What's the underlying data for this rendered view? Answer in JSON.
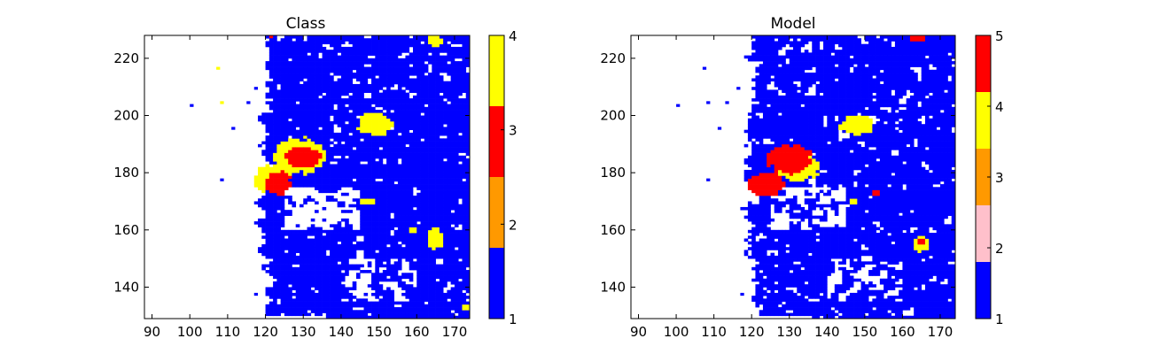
{
  "chart_data": [
    {
      "type": "heatmap",
      "title": "Class",
      "xlabel": "",
      "ylabel": "",
      "xlim": [
        88,
        174
      ],
      "ylim": [
        129,
        228
      ],
      "xticks": [
        "90",
        "100",
        "110",
        "120",
        "130",
        "140",
        "150",
        "160",
        "170"
      ],
      "yticks": [
        "140",
        "160",
        "180",
        "200",
        "220"
      ],
      "background_value": 1,
      "colorbar": {
        "min": 1,
        "max": 4,
        "ticks": [
          "1",
          "2",
          "3",
          "4"
        ],
        "bins": [
          {
            "from": 1,
            "to": 1.75,
            "color": "#0000ff"
          },
          {
            "from": 1.75,
            "to": 2.5,
            "color": "#ff9900"
          },
          {
            "from": 2.5,
            "to": 3.25,
            "color": "#ff0000"
          },
          {
            "from": 3.25,
            "to": 4,
            "color": "#ffff00"
          }
        ]
      },
      "regions": [
        {
          "value": 4,
          "x": 129,
          "y": 186,
          "rx": 7,
          "ry": 6
        },
        {
          "value": 4,
          "x": 122,
          "y": 178,
          "rx": 5,
          "ry": 5
        },
        {
          "value": 3,
          "x": 130,
          "y": 185.5,
          "rx": 5,
          "ry": 3.5
        },
        {
          "value": 3,
          "x": 123.5,
          "y": 176.5,
          "rx": 3.5,
          "ry": 4
        },
        {
          "value": 4,
          "x": 149,
          "y": 197,
          "rx": 4.5,
          "ry": 4
        },
        {
          "value": 4,
          "x": 165,
          "y": 157,
          "rx": 2,
          "ry": 4
        },
        {
          "value": 4,
          "x": 165,
          "y": 226,
          "rx": 2,
          "ry": 2
        },
        {
          "value": 4,
          "x": 147,
          "y": 170,
          "rx": 2,
          "ry": 1
        },
        {
          "value": 4,
          "x": 159,
          "y": 160,
          "rx": 1,
          "ry": 1
        },
        {
          "value": 4,
          "x": 173,
          "y": 133,
          "rx": 1,
          "ry": 1
        }
      ],
      "isolated_cells": [
        {
          "x": 100,
          "y": 203,
          "value": 1
        },
        {
          "x": 107,
          "y": 216,
          "value": 4
        },
        {
          "x": 108,
          "y": 204,
          "value": 4
        },
        {
          "x": 111,
          "y": 195,
          "value": 1
        },
        {
          "x": 108,
          "y": 177,
          "value": 1
        },
        {
          "x": 115,
          "y": 204,
          "value": 1
        },
        {
          "x": 117,
          "y": 209,
          "value": 1
        },
        {
          "x": 117,
          "y": 137,
          "value": 1
        },
        {
          "x": 121,
          "y": 227,
          "value": 3
        }
      ]
    },
    {
      "type": "heatmap",
      "title": "Model",
      "xlabel": "",
      "ylabel": "",
      "xlim": [
        88,
        174
      ],
      "ylim": [
        129,
        228
      ],
      "xticks": [
        "90",
        "100",
        "110",
        "120",
        "130",
        "140",
        "150",
        "160",
        "170"
      ],
      "yticks": [
        "140",
        "160",
        "180",
        "200",
        "220"
      ],
      "background_value": 1,
      "colorbar": {
        "min": 1,
        "max": 5,
        "ticks": [
          "1",
          "2",
          "3",
          "4",
          "5"
        ],
        "bins": [
          {
            "from": 1,
            "to": 1.8,
            "color": "#0000ff"
          },
          {
            "from": 1.8,
            "to": 2.6,
            "color": "#ffc0cb"
          },
          {
            "from": 2.6,
            "to": 3.4,
            "color": "#ff9900"
          },
          {
            "from": 3.4,
            "to": 4.2,
            "color": "#ffff00"
          },
          {
            "from": 4.2,
            "to": 5,
            "color": "#ff0000"
          }
        ]
      },
      "regions": [
        {
          "value": 4,
          "x": 132,
          "y": 182,
          "rx": 6,
          "ry": 5
        },
        {
          "value": 5,
          "x": 130,
          "y": 185,
          "rx": 6,
          "ry": 5
        },
        {
          "value": 5,
          "x": 124,
          "y": 176,
          "rx": 5,
          "ry": 4
        },
        {
          "value": 4,
          "x": 148,
          "y": 197,
          "rx": 4.5,
          "ry": 3.5
        },
        {
          "value": 4,
          "x": 165,
          "y": 155,
          "rx": 2,
          "ry": 3
        },
        {
          "value": 5,
          "x": 165,
          "y": 156,
          "rx": 1,
          "ry": 1.5
        },
        {
          "value": 5,
          "x": 164,
          "y": 227,
          "rx": 2,
          "ry": 1
        },
        {
          "value": 4,
          "x": 147,
          "y": 170,
          "rx": 1.5,
          "ry": 1
        },
        {
          "value": 5,
          "x": 153,
          "y": 173,
          "rx": 1,
          "ry": 1
        }
      ],
      "isolated_cells": [
        {
          "x": 100,
          "y": 203,
          "value": 1
        },
        {
          "x": 107,
          "y": 216,
          "value": 1
        },
        {
          "x": 108,
          "y": 204,
          "value": 1
        },
        {
          "x": 111,
          "y": 195,
          "value": 1
        },
        {
          "x": 108,
          "y": 177,
          "value": 1
        },
        {
          "x": 113,
          "y": 204,
          "value": 1
        },
        {
          "x": 116,
          "y": 209,
          "value": 1
        },
        {
          "x": 117,
          "y": 137,
          "value": 1
        }
      ]
    }
  ]
}
